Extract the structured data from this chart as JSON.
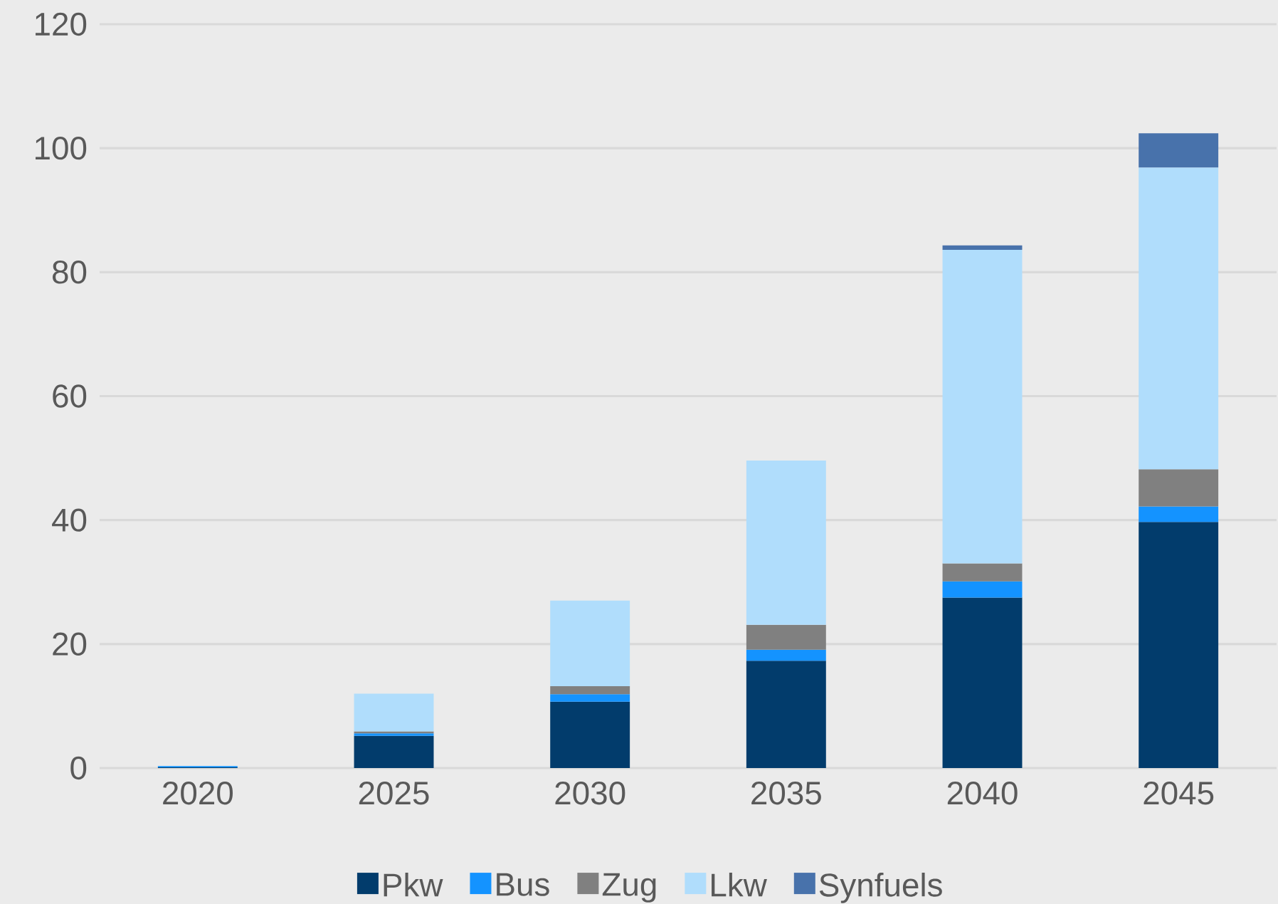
{
  "chart_data": {
    "type": "bar",
    "stacked": true,
    "categories": [
      "2020",
      "2025",
      "2030",
      "2035",
      "2040",
      "2045"
    ],
    "series": [
      {
        "name": "Pkw",
        "color": "#023c6c",
        "values": [
          0.1,
          5.2,
          10.7,
          17.3,
          27.5,
          39.7
        ]
      },
      {
        "name": "Bus",
        "color": "#1493ff",
        "values": [
          0.2,
          0.4,
          1.2,
          1.8,
          2.6,
          2.5
        ]
      },
      {
        "name": "Zug",
        "color": "#808080",
        "values": [
          null,
          0.3,
          1.3,
          4.0,
          2.9,
          6.0
        ]
      },
      {
        "name": "Lkw",
        "color": "#b0ddfc",
        "values": [
          null,
          6.1,
          13.8,
          26.5,
          50.6,
          48.7
        ]
      },
      {
        "name": "Synfuels",
        "color": "#4872ab",
        "values": [
          null,
          null,
          null,
          null,
          0.7,
          5.5
        ]
      }
    ],
    "ylim": [
      0,
      120
    ],
    "yticks": [
      0,
      20,
      40,
      60,
      80,
      100,
      120
    ],
    "grid": "y",
    "legend": "bottom"
  }
}
